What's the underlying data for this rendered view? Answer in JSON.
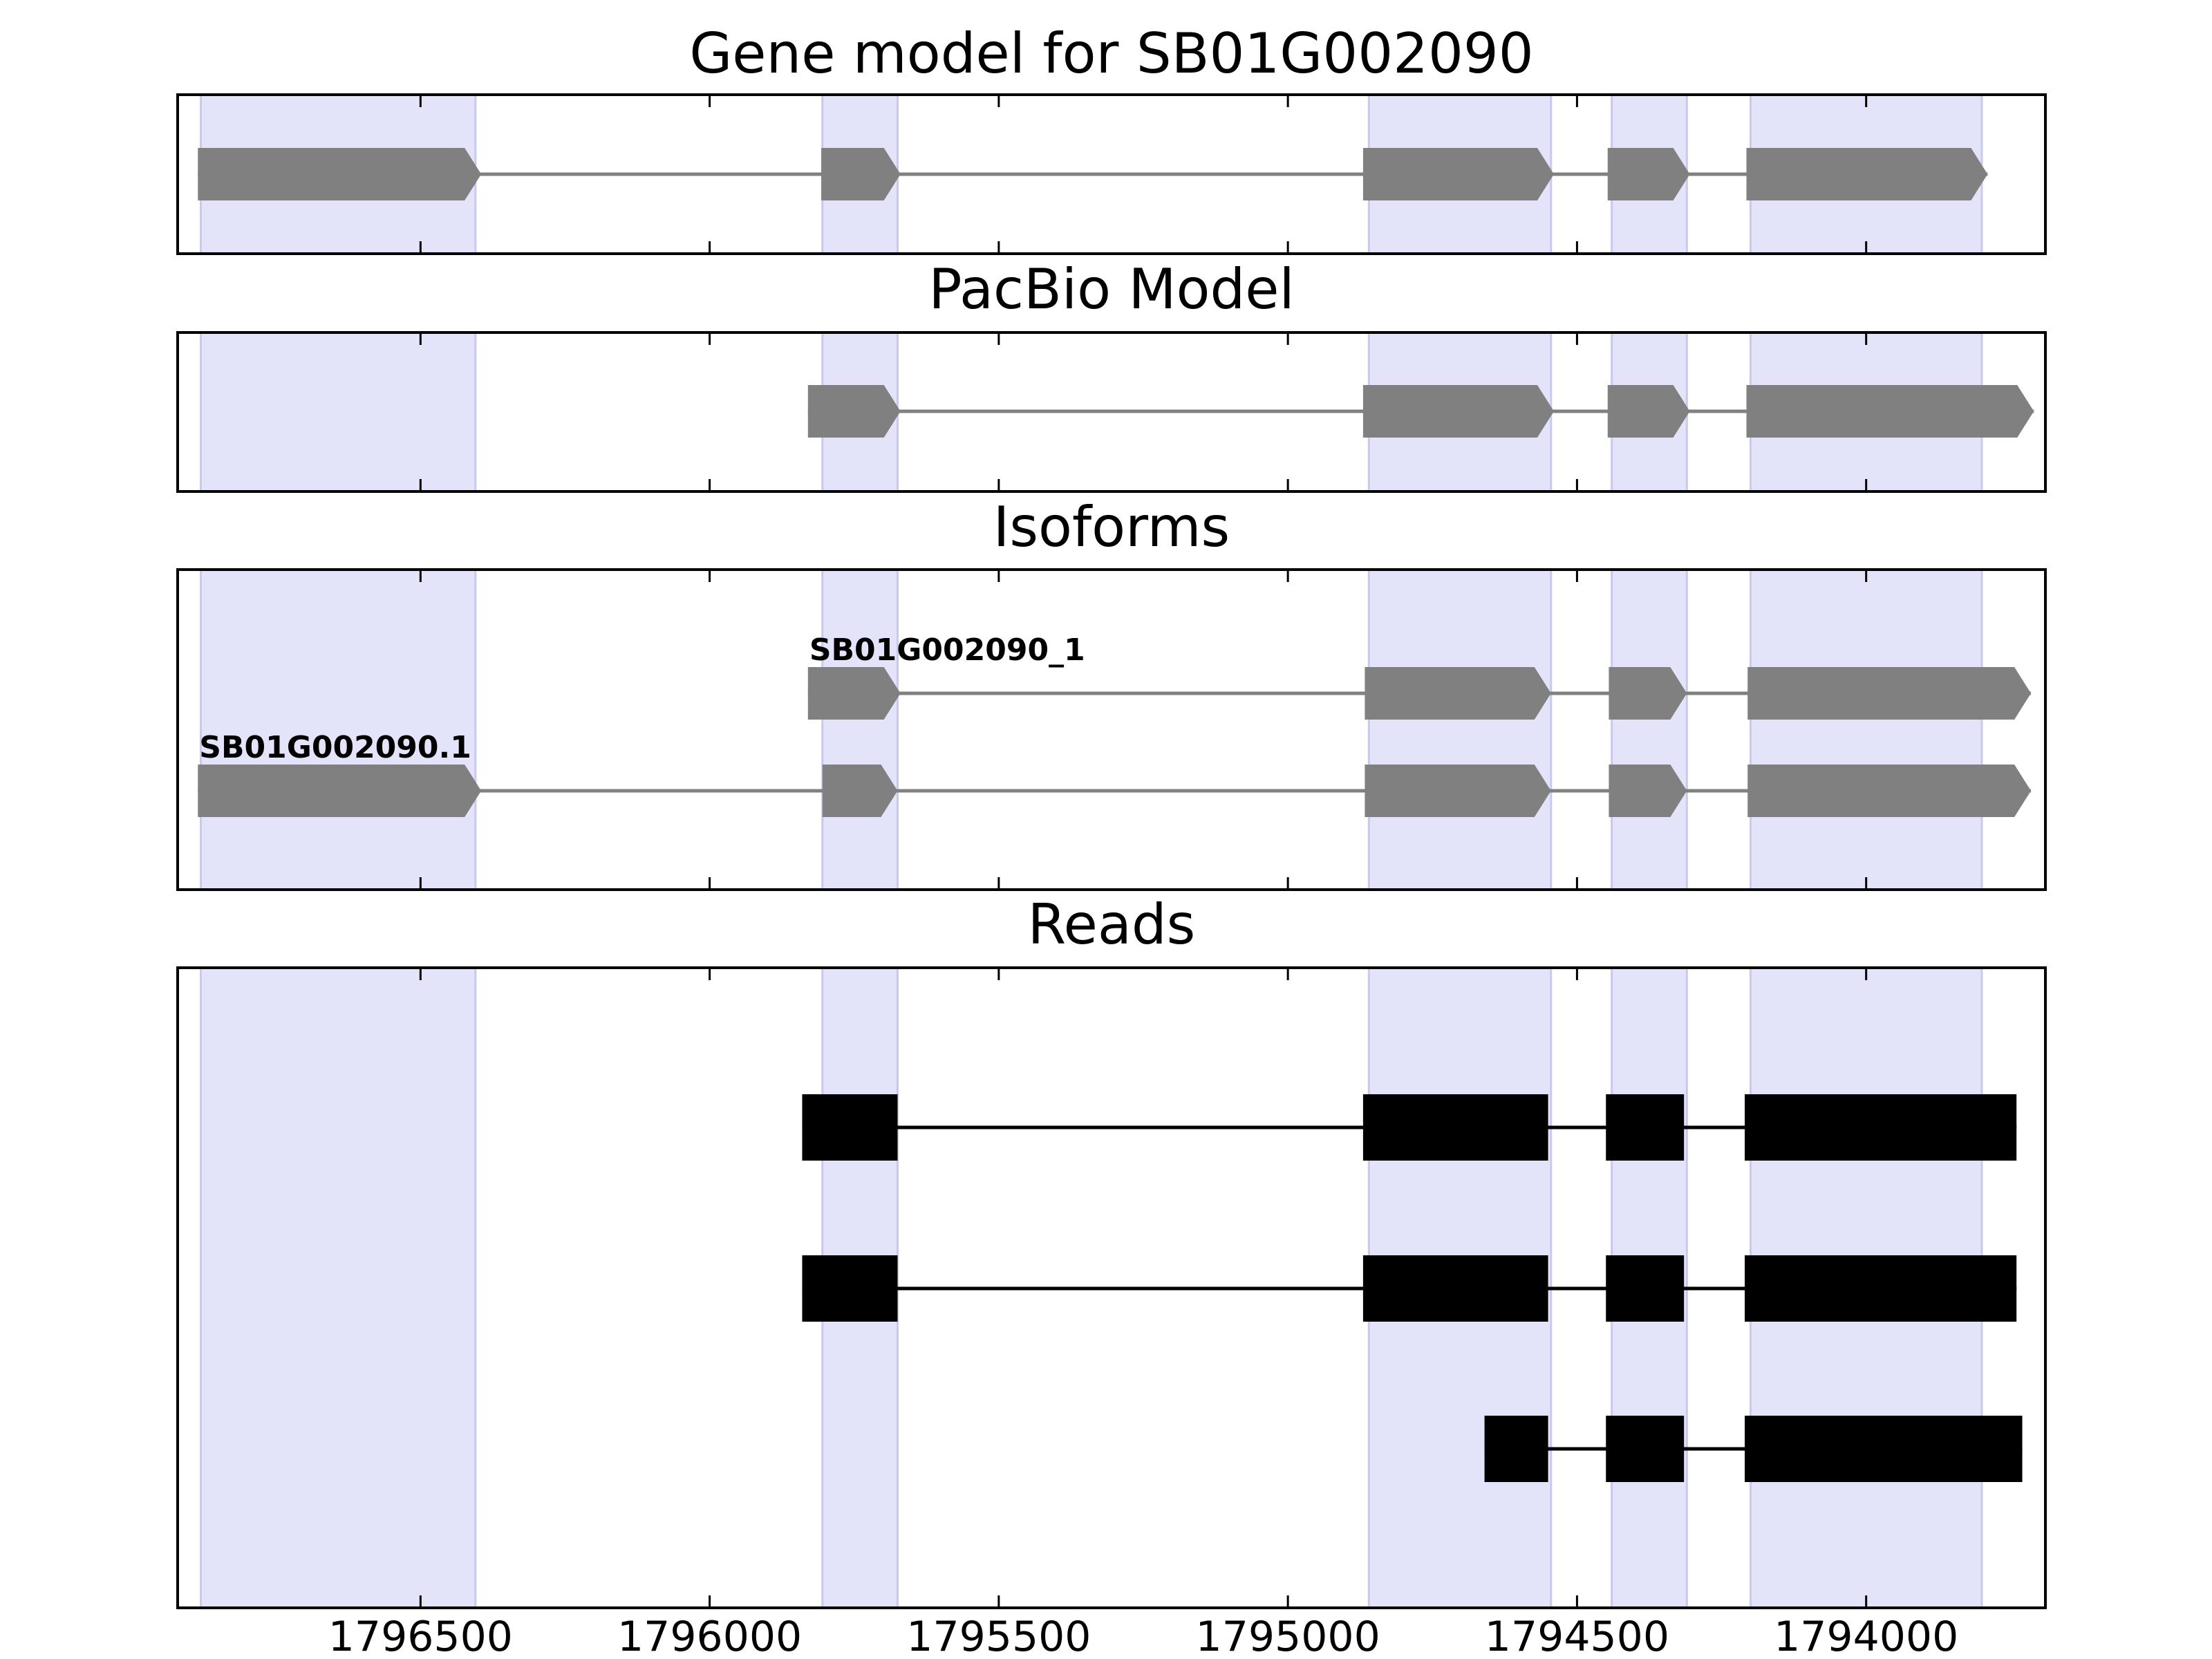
{
  "chart_data": {
    "type": "gene-model-track",
    "xaxis": {
      "reversed": true,
      "xlim": [
        1796920,
        1793690
      ],
      "ticks": [
        1796500,
        1796000,
        1795500,
        1795000,
        1794500,
        1794000
      ],
      "tick_labels": [
        "1796500",
        "1796000",
        "1795500",
        "1795000",
        "1794500",
        "1794000"
      ]
    },
    "highlight_regions": [
      [
        1796880,
        1796405
      ],
      [
        1795805,
        1795675
      ],
      [
        1794860,
        1794545
      ],
      [
        1794440,
        1794310
      ],
      [
        1794200,
        1793800
      ]
    ],
    "panels": [
      {
        "title": "Gene model for SB01G002090",
        "kind": "arrows",
        "tracks": [
          {
            "label": "",
            "exons": [
              [
                1796885,
                1796395
              ],
              [
                1795807,
                1795670
              ],
              [
                1794870,
                1794540
              ],
              [
                1794447,
                1794305
              ],
              [
                1794207,
                1793790
              ]
            ]
          }
        ]
      },
      {
        "title": "PacBio Model",
        "kind": "arrows",
        "tracks": [
          {
            "label": "",
            "exons": [
              [
                1795830,
                1795670
              ],
              [
                1794870,
                1794540
              ],
              [
                1794447,
                1794305
              ],
              [
                1794207,
                1793710
              ]
            ]
          }
        ]
      },
      {
        "title": "Isoforms",
        "kind": "arrows",
        "tracks": [
          {
            "label": "SB01G002090_1",
            "exons": [
              [
                1795830,
                1795670
              ],
              [
                1794867,
                1794545
              ],
              [
                1794445,
                1794310
              ],
              [
                1794205,
                1793715
              ]
            ]
          },
          {
            "label": "SB01G002090.1",
            "exons": [
              [
                1796885,
                1796395
              ],
              [
                1795805,
                1795675
              ],
              [
                1794867,
                1794545
              ],
              [
                1794445,
                1794310
              ],
              [
                1794205,
                1793715
              ]
            ]
          }
        ]
      },
      {
        "title": "Reads",
        "kind": "blocks",
        "tracks": [
          {
            "label": "",
            "exons": [
              [
                1795840,
                1795675
              ],
              [
                1794870,
                1794550
              ],
              [
                1794450,
                1794315
              ],
              [
                1794210,
                1793740
              ]
            ]
          },
          {
            "label": "",
            "exons": [
              [
                1795840,
                1795675
              ],
              [
                1794870,
                1794550
              ],
              [
                1794450,
                1794315
              ],
              [
                1794210,
                1793740
              ]
            ]
          },
          {
            "label": "",
            "exons": [
              [
                1794660,
                1794550
              ],
              [
                1794450,
                1794315
              ],
              [
                1794210,
                1793730
              ]
            ]
          }
        ]
      }
    ],
    "colors": {
      "highlight_fill": "#e3e3fa",
      "highlight_edge": "#c9c9ef",
      "arrow_fill": "#808080",
      "intron_gray": "#808080",
      "read_fill": "#000000",
      "axes": "#000000"
    }
  }
}
